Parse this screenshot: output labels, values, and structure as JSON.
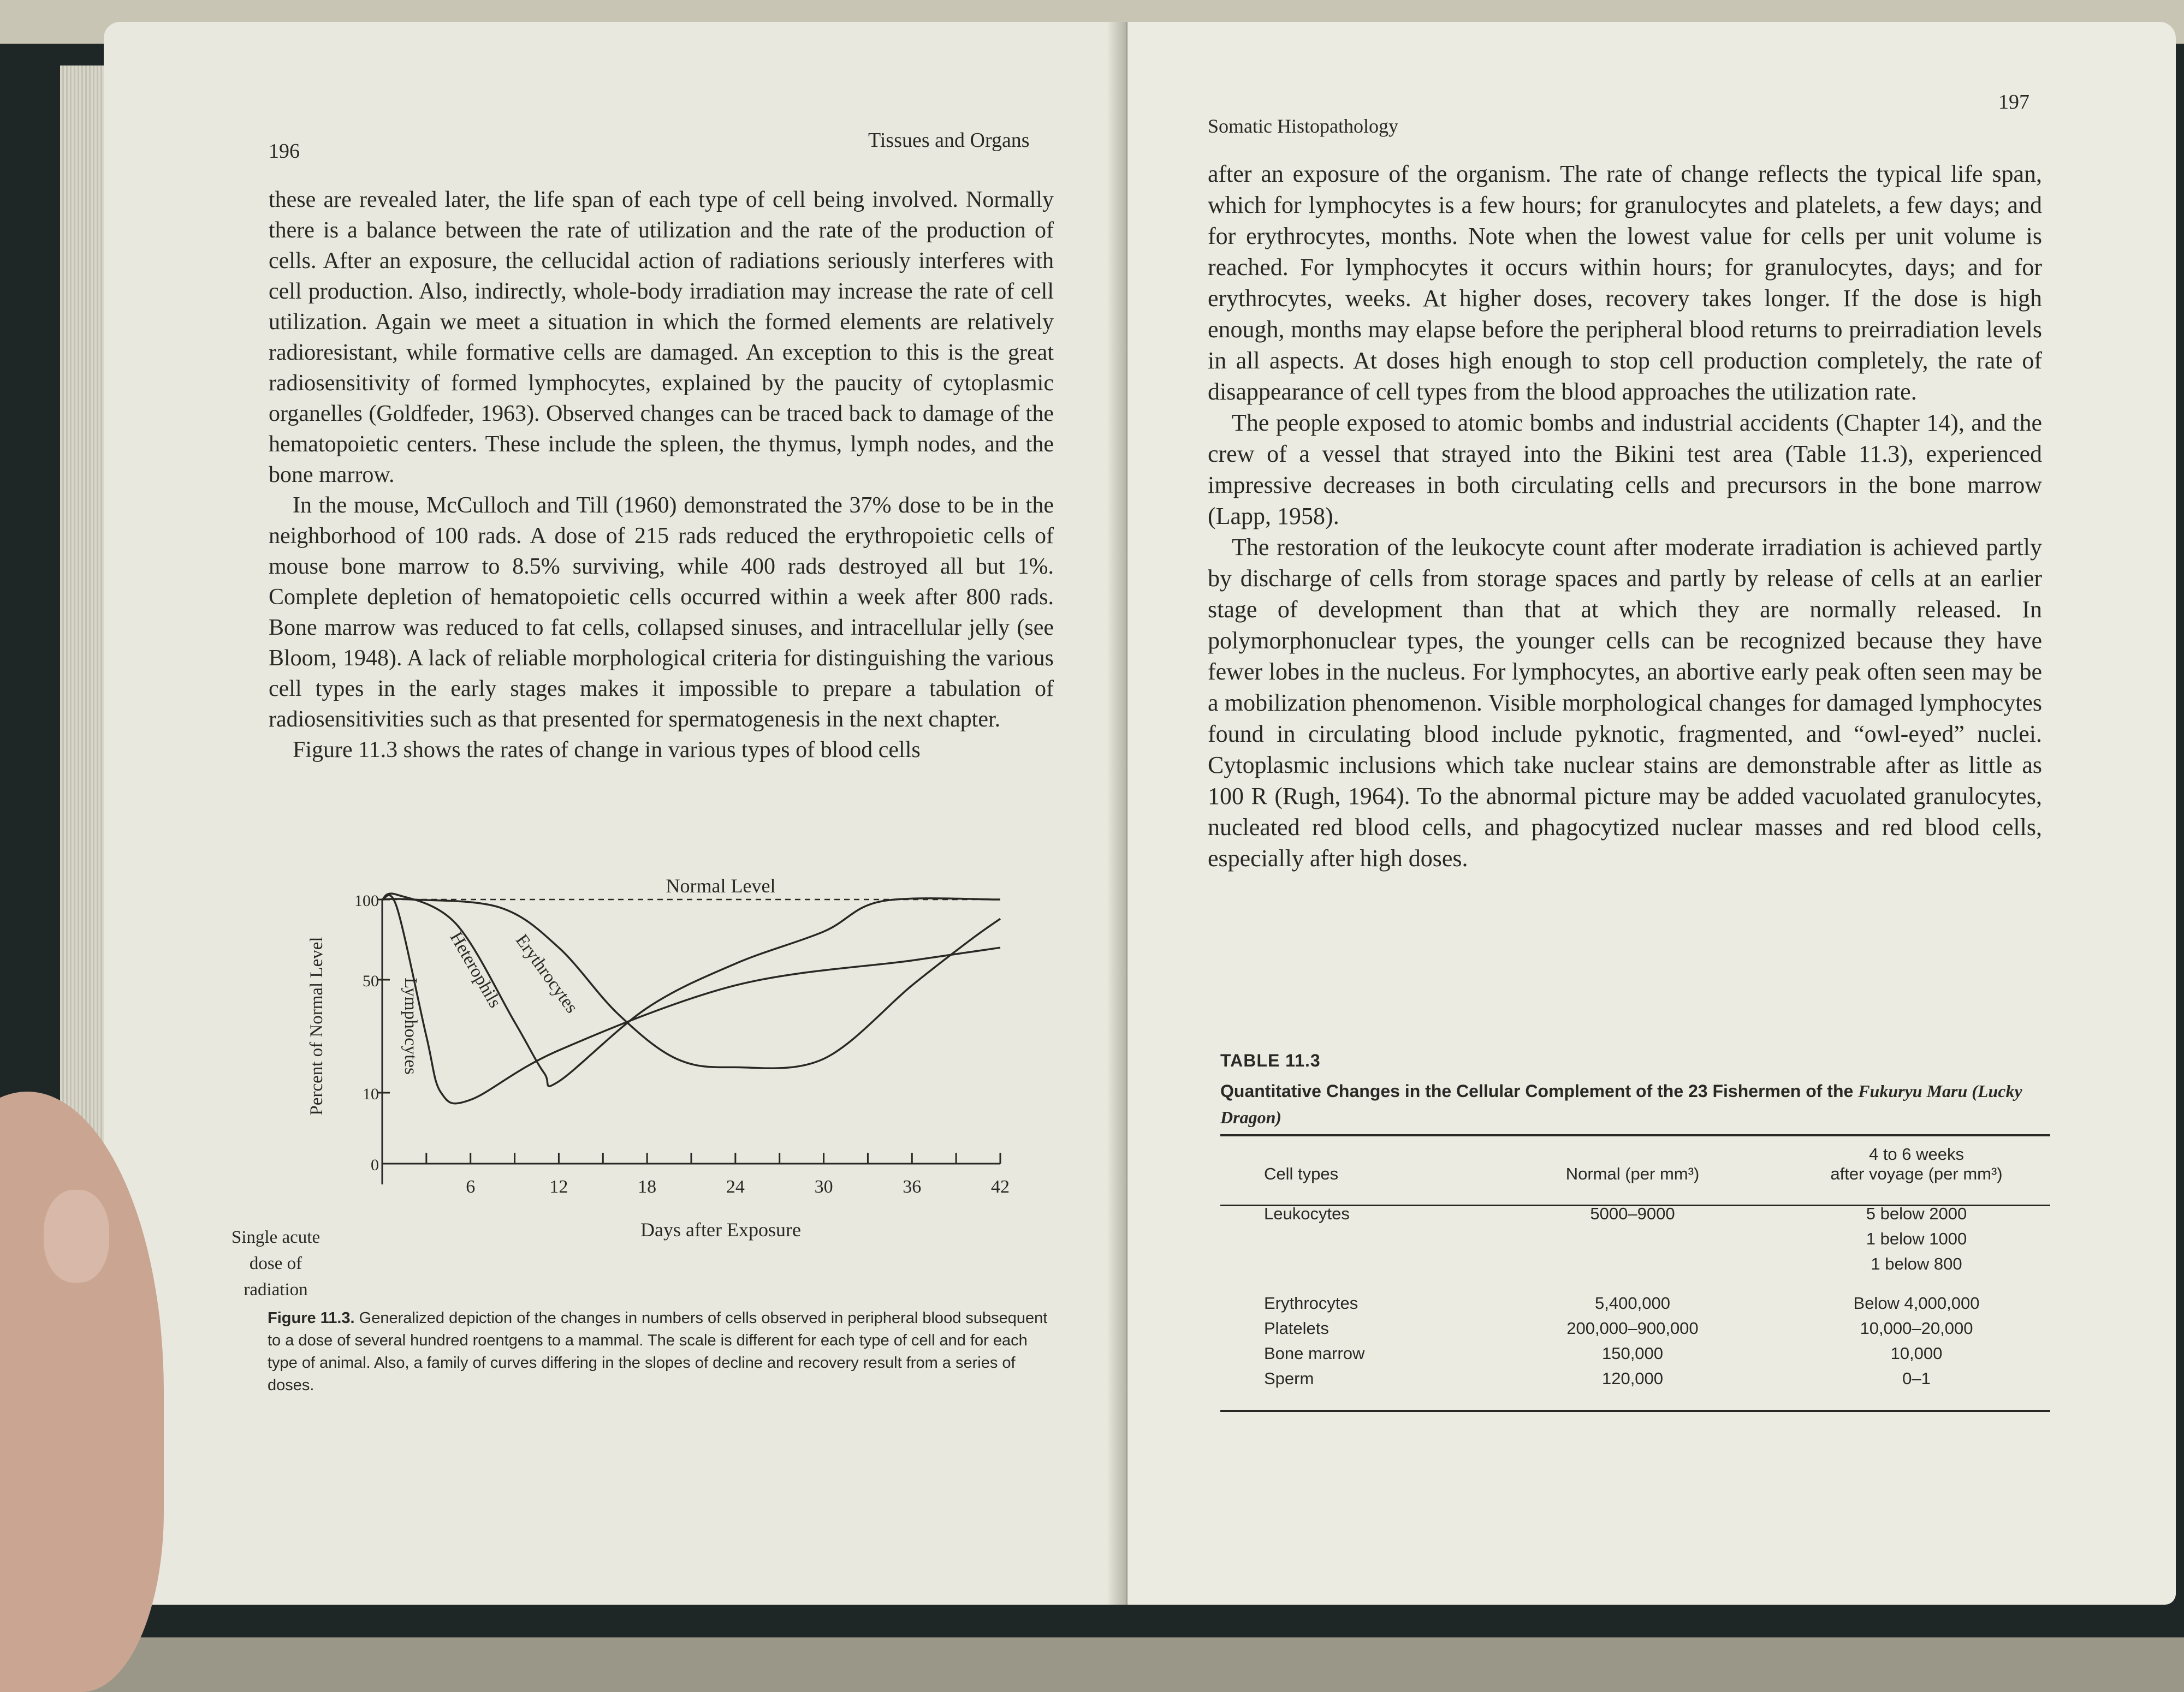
{
  "left_page": {
    "page_number": "196",
    "running_head": "Tissues and Organs",
    "paragraphs": [
      "these are revealed later, the life span of each type of cell being involved. Normally there is a balance between the rate of utilization and the rate of the production of cells. After an exposure, the cellucidal action of radiations seriously interferes with cell production. Also, indirectly, whole-body irradiation may increase the rate of cell utilization. Again we meet a situation in which the formed elements are relatively radioresistant, while formative cells are damaged. An exception to this is the great radiosensitivity of formed lymphocytes, explained by the paucity of cytoplasmic organelles (Goldfeder, 1963). Observed changes can be traced back to damage of the hematopoietic centers. These include the spleen, the thymus, lymph nodes, and the bone marrow.",
      "In the mouse, McCulloch and Till (1960) demonstrated the 37% dose to be in the neighborhood of 100 rads. A dose of 215 rads reduced the erythropoietic cells of mouse bone marrow to 8.5% surviving, while 400 rads destroyed all but 1%. Complete depletion of hematopoietic cells occurred within a week after 800 rads. Bone marrow was reduced to fat cells, collapsed sinuses, and intracellular jelly (see Bloom, 1948). A lack of reliable morphological criteria for distinguishing the various cell types in the early stages makes it impossible to prepare a tabulation of radiosensitivities such as that presented for spermatogenesis in the next chapter.",
      "Figure 11.3 shows the rates of change in various types of blood cells"
    ],
    "figure": {
      "caption_label": "Figure 11.3.",
      "caption_text": "Generalized depiction of the changes in numbers of cells observed in peripheral blood subsequent to a dose of several hundred roentgens to a mammal. The scale is different for each type of cell and for each type of animal. Also, a family of curves differing in the slopes of decline and recovery result from a series of doses.",
      "dose_label": [
        "Single acute",
        "dose of",
        "radiation"
      ]
    }
  },
  "right_page": {
    "page_number": "197",
    "running_head": "Somatic Histopathology",
    "paragraphs": [
      "after an exposure of the organism. The rate of change reflects the typical life span, which for lymphocytes is a few hours; for granulocytes and platelets, a few days; and for erythrocytes, months. Note when the lowest value for cells per unit volume is reached. For lymphocytes it occurs within hours; for granulocytes, days; and for erythrocytes, weeks. At higher doses, recovery takes longer. If the dose is high enough, months may elapse before the peripheral blood returns to preirradiation levels in all aspects. At doses high enough to stop cell production completely, the rate of disappearance of cell types from the blood approaches the utilization rate.",
      "The people exposed to atomic bombs and industrial accidents (Chapter 14), and the crew of a vessel that strayed into the Bikini test area (Table 11.3), experienced impressive decreases in both circulating cells and precursors in the bone marrow (Lapp, 1958).",
      "The restoration of the leukocyte count after moderate irradiation is achieved partly by discharge of cells from storage spaces and partly by release of cells at an earlier stage of development than that at which they are normally released. In polymorphonuclear types, the younger cells can be recognized because they have fewer lobes in the nucleus. For lymphocytes, an abortive early peak often seen may be a mobilization phenomenon. Visible morphological changes for damaged lymphocytes found in circulating blood include pyknotic, fragmented, and “owl-eyed” nuclei. Cytoplasmic inclusions which take nuclear stains are demonstrable after as little as 100 R (Rugh, 1964). To the abnormal picture may be added vacuolated granulocytes, nucleated red blood cells, and phagocytized nuclear masses and red blood cells, especially after high doses."
    ],
    "table": {
      "label": "TABLE 11.3",
      "title_main": "Quantitative Changes in the Cellular Complement of the 23 Fishermen of the",
      "title_italic": "Fukuryu Maru (Lucky Dragon)",
      "headers": {
        "cell_types": "Cell types",
        "normal": "Normal (per mm³)",
        "after_line1": "4 to 6 weeks",
        "after_line2": "after voyage (per mm³)"
      },
      "rows": [
        {
          "cell": "Leukocytes",
          "normal": "5000–9000",
          "after": "5 below 2000"
        },
        {
          "cell": "",
          "normal": "",
          "after": "1 below 1000"
        },
        {
          "cell": "",
          "normal": "",
          "after": "1 below 800"
        },
        {
          "cell": "Erythrocytes",
          "normal": "5,400,000",
          "after": "Below 4,000,000"
        },
        {
          "cell": "Platelets",
          "normal": "200,000–900,000",
          "after": "10,000–20,000"
        },
        {
          "cell": "Bone marrow",
          "normal": "150,000",
          "after": "10,000"
        },
        {
          "cell": "Sperm",
          "normal": "120,000",
          "after": "0–1"
        }
      ]
    }
  },
  "chart_data": {
    "type": "line",
    "xlabel": "Days after Exposure",
    "ylabel": "Percent of Normal Level",
    "x_ticks": [
      "6",
      "12",
      "18",
      "24",
      "30",
      "36",
      "42"
    ],
    "y_ticks": [
      "0",
      "10",
      "50",
      "100"
    ],
    "xlim": [
      0,
      42
    ],
    "ylim": [
      0,
      100
    ],
    "reference_line": {
      "label": "Normal Level",
      "y": 100
    },
    "series": [
      {
        "name": "Lymphocytes",
        "x": [
          0,
          1,
          3,
          4,
          6,
          12,
          24,
          36,
          42
        ],
        "y": [
          100,
          95,
          30,
          10,
          9,
          25,
          48,
          62,
          70
        ]
      },
      {
        "name": "Heterophils",
        "x": [
          0,
          1,
          5,
          9,
          11,
          12,
          18,
          24,
          30,
          34,
          42
        ],
        "y": [
          100,
          103,
          85,
          35,
          17,
          14,
          40,
          60,
          80,
          99,
          100
        ]
      },
      {
        "name": "Erythrocytes",
        "x": [
          0,
          2,
          8,
          12,
          16,
          20,
          24,
          30,
          36,
          40,
          42
        ],
        "y": [
          100,
          100,
          95,
          70,
          38,
          22,
          19,
          22,
          48,
          75,
          88
        ]
      }
    ],
    "grid": false
  }
}
